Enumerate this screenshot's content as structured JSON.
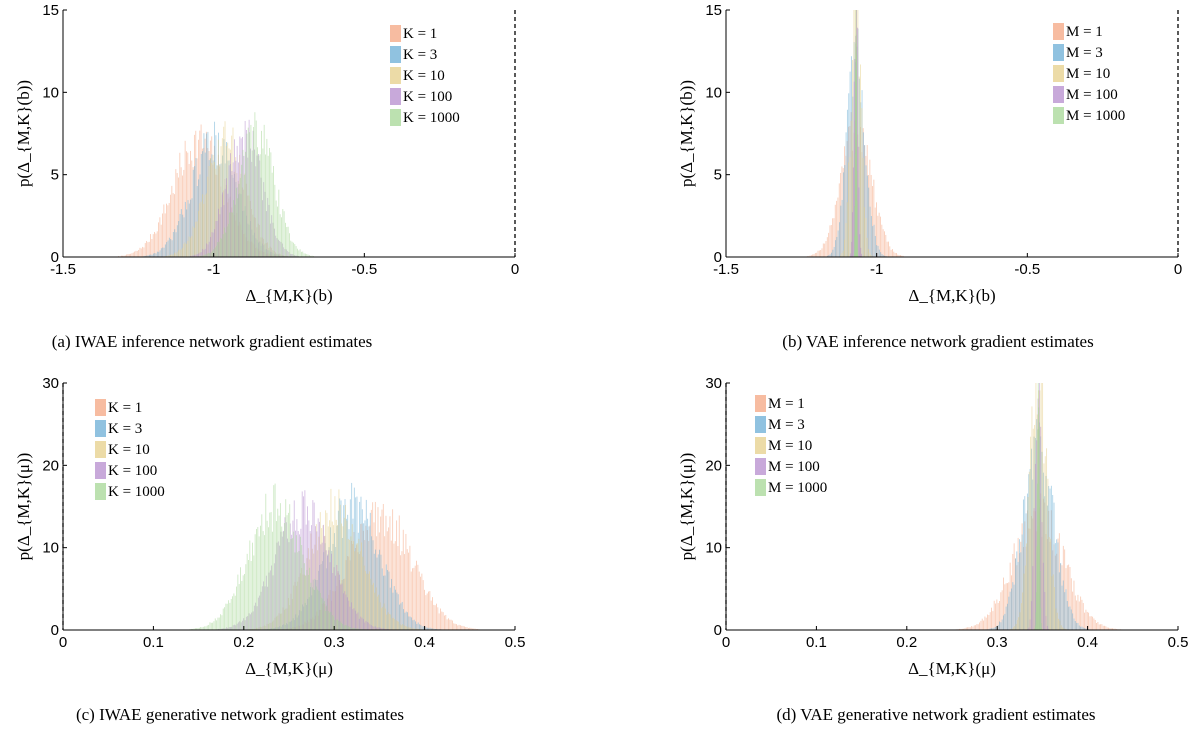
{
  "chart_data": [
    {
      "id": "a",
      "type": "histogram",
      "caption": "(a) IWAE inference network gradient estimates",
      "xlabel": "Δ_{M,K}(b)",
      "ylabel": "p(Δ_{M,K}(b))",
      "xlim": [
        -1.5,
        0
      ],
      "ylim": [
        0,
        15
      ],
      "xticks": [
        -1.5,
        -1,
        -0.5,
        0
      ],
      "xtick_labels": [
        "-1.5",
        "-1",
        "-0.5",
        "0"
      ],
      "yticks": [
        0,
        5,
        10,
        15
      ],
      "ytick_labels": [
        "0",
        "5",
        "10",
        "15"
      ],
      "vline_x": 0,
      "legend_position": "top-right",
      "series": [
        {
          "name": "K = 1",
          "color": "#f4a582",
          "center": -1.05,
          "sd": 0.085,
          "peak": 7.0,
          "range": [
            -1.33,
            -0.7
          ]
        },
        {
          "name": "K = 3",
          "color": "#6baed6",
          "center": -1.0,
          "sd": 0.075,
          "peak": 7.0,
          "range": [
            -1.25,
            -0.73
          ]
        },
        {
          "name": "K = 10",
          "color": "#e6cf8a",
          "center": -0.96,
          "sd": 0.065,
          "peak": 7.0,
          "range": [
            -1.18,
            -0.72
          ]
        },
        {
          "name": "K = 100",
          "color": "#b58ccd",
          "center": -0.9,
          "sd": 0.058,
          "peak": 7.4,
          "range": [
            -1.1,
            -0.7
          ]
        },
        {
          "name": "K = 1000",
          "color": "#a6d796",
          "center": -0.86,
          "sd": 0.06,
          "peak": 7.6,
          "range": [
            -1.05,
            -0.64
          ]
        }
      ]
    },
    {
      "id": "b",
      "type": "histogram",
      "caption": "(b) VAE inference network gradient estimates",
      "xlabel": "Δ_{M,K}(b)",
      "ylabel": "p(Δ_{M,K}(b))",
      "xlim": [
        -1.5,
        0
      ],
      "ylim": [
        0,
        15
      ],
      "xticks": [
        -1.5,
        -1,
        -0.5,
        0
      ],
      "xtick_labels": [
        "-1.5",
        "-1",
        "-0.5",
        "0"
      ],
      "yticks": [
        0,
        5,
        10,
        15
      ],
      "ytick_labels": [
        "0",
        "5",
        "10",
        "15"
      ],
      "vline_x": 0,
      "legend_position": "top-right",
      "series": [
        {
          "name": "M = 1",
          "color": "#f4a582",
          "center": -1.07,
          "sd": 0.05,
          "peak": 8.0,
          "range": [
            -1.28,
            -0.85
          ]
        },
        {
          "name": "M = 3",
          "color": "#6baed6",
          "center": -1.07,
          "sd": 0.03,
          "peak": 12.0,
          "range": [
            -1.2,
            -0.93
          ]
        },
        {
          "name": "M = 10",
          "color": "#e6cf8a",
          "center": -1.07,
          "sd": 0.016,
          "peak": 16.0,
          "range": [
            -1.13,
            -1.01
          ]
        },
        {
          "name": "M = 100",
          "color": "#b58ccd",
          "center": -1.07,
          "sd": 0.006,
          "peak": 16.0,
          "range": [
            -1.09,
            -1.05
          ]
        },
        {
          "name": "M = 1000",
          "color": "#a6d796",
          "center": -1.07,
          "sd": 0.002,
          "peak": 16.0,
          "range": [
            -1.08,
            -1.06
          ]
        }
      ]
    },
    {
      "id": "c",
      "type": "histogram",
      "caption": "(c) IWAE generative network gradient estimates",
      "xlabel": "Δ_{M,K}(μ)",
      "ylabel": "p(Δ_{M,K}(μ))",
      "xlim": [
        0,
        0.5
      ],
      "ylim": [
        0,
        30
      ],
      "xticks": [
        0,
        0.1,
        0.2,
        0.3,
        0.4,
        0.5
      ],
      "xtick_labels": [
        "0",
        "0.1",
        "0.2",
        "0.3",
        "0.4",
        "0.5"
      ],
      "yticks": [
        0,
        10,
        20,
        30
      ],
      "ytick_labels": [
        "0",
        "10",
        "20",
        "30"
      ],
      "vline_x": 0,
      "legend_position": "top-left",
      "series": [
        {
          "name": "K = 1",
          "color": "#f4a582",
          "center": 0.35,
          "sd": 0.035,
          "peak": 14.0,
          "range": [
            0.22,
            0.46
          ]
        },
        {
          "name": "K = 3",
          "color": "#6baed6",
          "center": 0.32,
          "sd": 0.03,
          "peak": 15.0,
          "range": [
            0.21,
            0.42
          ]
        },
        {
          "name": "K = 10",
          "color": "#e6cf8a",
          "center": 0.3,
          "sd": 0.03,
          "peak": 14.5,
          "range": [
            0.19,
            0.4
          ]
        },
        {
          "name": "K = 100",
          "color": "#b58ccd",
          "center": 0.265,
          "sd": 0.03,
          "peak": 14.5,
          "range": [
            0.17,
            0.37
          ]
        },
        {
          "name": "K = 1000",
          "color": "#a6d796",
          "center": 0.235,
          "sd": 0.03,
          "peak": 15.0,
          "range": [
            0.14,
            0.34
          ]
        }
      ]
    },
    {
      "id": "d",
      "type": "histogram",
      "caption": "(d) VAE generative network gradient estimates",
      "xlabel": "Δ_{M,K}(μ)",
      "ylabel": "p(Δ_{M,K}(μ))",
      "xlim": [
        0,
        0.5
      ],
      "ylim": [
        0,
        30
      ],
      "xticks": [
        0,
        0.1,
        0.2,
        0.3,
        0.4,
        0.5
      ],
      "xtick_labels": [
        "0",
        "0.1",
        "0.2",
        "0.3",
        "0.4",
        "0.5"
      ],
      "yticks": [
        0,
        10,
        20,
        30
      ],
      "ytick_labels": [
        "0",
        "10",
        "20",
        "30"
      ],
      "vline_x": 0,
      "legend_position": "top-left",
      "series": [
        {
          "name": "M = 1",
          "color": "#f4a582",
          "center": 0.345,
          "sd": 0.028,
          "peak": 14.0,
          "range": [
            0.23,
            0.46
          ]
        },
        {
          "name": "M = 3",
          "color": "#6baed6",
          "center": 0.345,
          "sd": 0.017,
          "peak": 22.0,
          "range": [
            0.28,
            0.41
          ]
        },
        {
          "name": "M = 10",
          "color": "#e6cf8a",
          "center": 0.345,
          "sd": 0.009,
          "peak": 32.0,
          "range": [
            0.31,
            0.38
          ]
        },
        {
          "name": "M = 100",
          "color": "#b58ccd",
          "center": 0.345,
          "sd": 0.0035,
          "peak": 32.0,
          "range": [
            0.33,
            0.36
          ]
        },
        {
          "name": "M = 1000",
          "color": "#a6d796",
          "center": 0.345,
          "sd": 0.0012,
          "peak": 32.0,
          "range": [
            0.34,
            0.35
          ]
        }
      ]
    }
  ]
}
